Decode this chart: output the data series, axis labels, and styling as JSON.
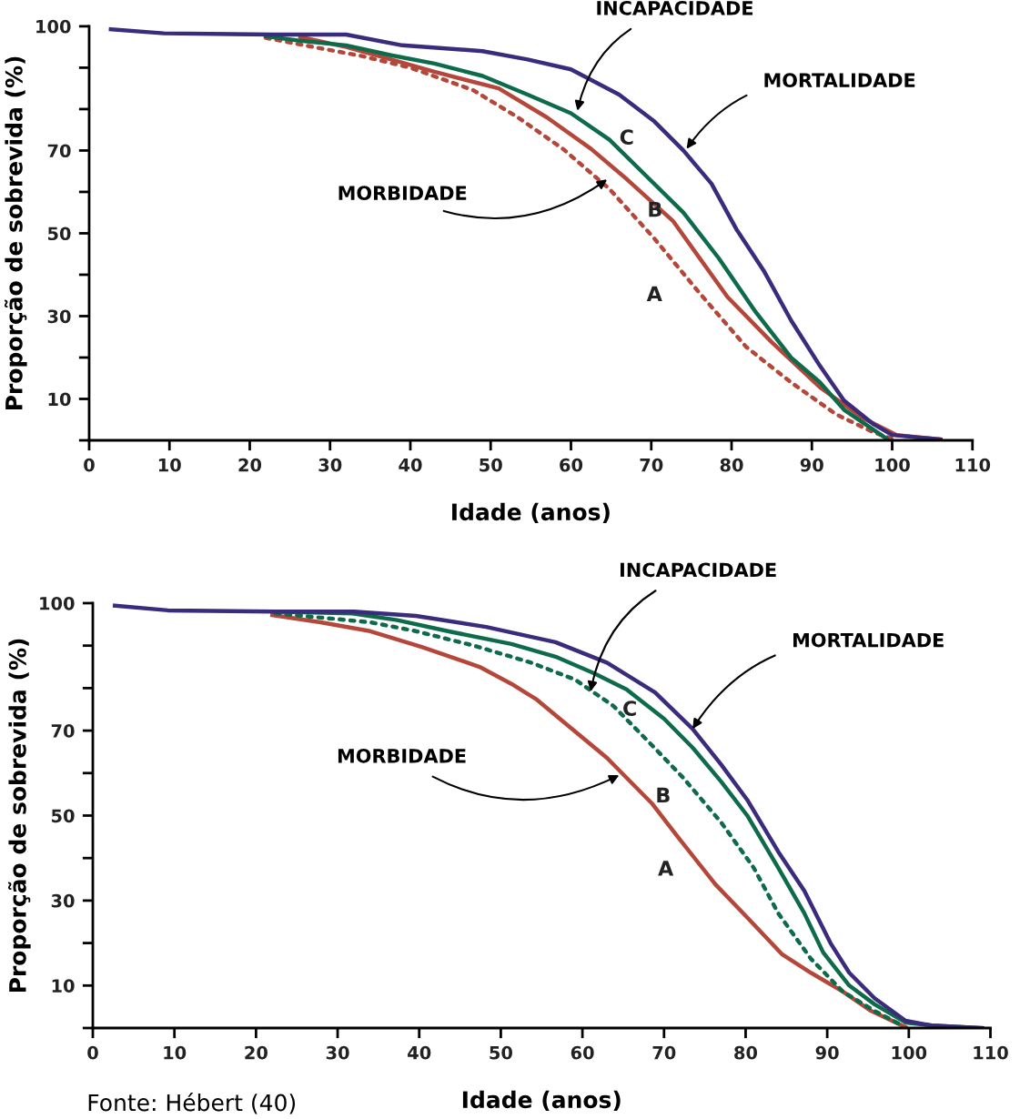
{
  "chart_data": [
    {
      "type": "line",
      "xlabel": "Idade (anos)",
      "ylabel": "Proporção de sobrevida (%)",
      "xlim": [
        0,
        110
      ],
      "xticks": [
        0,
        10,
        20,
        30,
        40,
        50,
        60,
        70,
        80,
        90,
        100,
        110
      ],
      "ylim": [
        0,
        100
      ],
      "yticks": [
        {
          "value": 0,
          "label": null
        },
        10,
        {
          "value": 20,
          "label": null
        },
        30,
        {
          "value": 40,
          "label": null
        },
        50,
        {
          "value": 60,
          "label": null
        },
        70,
        {
          "value": 80,
          "label": null
        },
        {
          "value": 90,
          "label": null
        },
        100
      ],
      "series": [
        {
          "color": "#b5473a",
          "line_style": "dotted",
          "x": [
            22,
            28.5,
            34,
            40,
            47.8,
            53.4,
            59,
            64.8,
            70.4,
            76,
            81.8,
            87.4,
            93,
            97.6,
            100.5
          ],
          "values": [
            97.2,
            94.8,
            92.8,
            90,
            84.6,
            78,
            70.4,
            60.7,
            48.7,
            35.6,
            22.6,
            14,
            6.3,
            2,
            0
          ]
        },
        {
          "color": "#b5473a",
          "line_style": "solid",
          "x": [
            26.3,
            32,
            37.6,
            43,
            51,
            57,
            62.5,
            67,
            72.7,
            79.5,
            85,
            91,
            96.5,
            100.5,
            106
          ],
          "values": [
            97.4,
            95,
            92,
            89,
            85,
            78,
            70.4,
            63,
            53,
            34.6,
            23.7,
            12.8,
            5.2,
            1.3,
            0.2
          ]
        },
        {
          "color": "#0e6b4a",
          "line_style": "solid",
          "x": [
            22,
            26.3,
            32,
            37.6,
            43,
            49,
            54.6,
            60,
            64.8,
            69.3,
            74,
            78.4,
            83,
            87.4,
            91,
            94,
            99.3
          ],
          "values": [
            97.6,
            96.5,
            95.4,
            93,
            91,
            88,
            83.5,
            79,
            72.6,
            64,
            55,
            44,
            31,
            20,
            14,
            7.4,
            0.4
          ]
        },
        {
          "color": "#3b2b7c",
          "line_style": "solid",
          "x": [
            2.7,
            9.3,
            23,
            32,
            39,
            49,
            54.6,
            60,
            66,
            70.4,
            74,
            77.5,
            80.6,
            84,
            87.4,
            91,
            94,
            97.6,
            100,
            106
          ],
          "values": [
            99.3,
            98.3,
            98,
            98,
            95.4,
            94,
            92,
            89.6,
            83.5,
            77,
            70,
            62,
            51,
            41,
            29,
            18,
            9.6,
            4,
            1.3,
            0.2
          ]
        }
      ],
      "annotations": [
        {
          "text": "INCAPACIDADE",
          "x": 60.8,
          "y": 79.6
        },
        {
          "text": "MORTALIDADE",
          "x": 74.4,
          "y": 70.4
        },
        {
          "text": "MORBIDADE",
          "x": 64.5,
          "y": 63
        },
        {
          "text": "C",
          "x": 66,
          "y": 83.5
        },
        {
          "text": "B",
          "x": 67,
          "y": 63
        },
        {
          "text": "A",
          "x": 70.4,
          "y": 48.7
        }
      ]
    },
    {
      "type": "line",
      "xlabel": "Idade (anos)",
      "ylabel": "Proporção de sobrevida (%)",
      "xlim": [
        0,
        110
      ],
      "xticks": [
        0,
        10,
        20,
        30,
        40,
        50,
        60,
        70,
        80,
        90,
        100,
        110
      ],
      "ylim": [
        0,
        100
      ],
      "yticks": [
        {
          "value": 0,
          "label": null
        },
        10,
        {
          "value": 20,
          "label": null
        },
        30,
        {
          "value": 40,
          "label": null
        },
        50,
        {
          "value": 60,
          "label": null
        },
        70,
        {
          "value": 80,
          "label": null
        },
        {
          "value": 90,
          "label": null
        },
        100
      ],
      "series": [
        {
          "color": "#b5473a",
          "line_style": "solid",
          "x": [
            22,
            27.9,
            34,
            40.3,
            47.4,
            51.3,
            54.4,
            59.1,
            63,
            68.5,
            71.6,
            76.3,
            80.2,
            84.5,
            88,
            91.9,
            95.4,
            99.6
          ],
          "values": [
            97.2,
            95.5,
            93.4,
            89.7,
            85,
            81,
            77.3,
            69.8,
            63.6,
            52.9,
            45.2,
            33.8,
            26,
            17.3,
            13,
            8.6,
            4,
            0.2
          ]
        },
        {
          "color": "#0e6b4a",
          "line_style": "dotted",
          "x": [
            22.4,
            27.9,
            34,
            39.6,
            46.7,
            53.7,
            59.1,
            63.8,
            68.5,
            72.3,
            77,
            81,
            84,
            88,
            91.9,
            95.8,
            98.9
          ],
          "values": [
            97.6,
            96.6,
            95.5,
            93.4,
            90,
            86,
            82,
            75.8,
            66.6,
            59,
            48.4,
            37.7,
            27,
            16.3,
            8.6,
            4,
            0.9
          ]
        },
        {
          "color": "#0e6b4a",
          "line_style": "solid",
          "x": [
            22.4,
            31.8,
            37.3,
            43.5,
            51.3,
            56.7,
            61.4,
            65.4,
            70,
            73.5,
            77,
            80.2,
            84,
            87.2,
            89.5,
            92.7,
            95.8,
            99.6,
            102.8,
            109
          ],
          "values": [
            98,
            97.6,
            96,
            93.4,
            90.4,
            87.4,
            83.5,
            79.7,
            72.8,
            66,
            58,
            50,
            37.7,
            27,
            17.8,
            10,
            5.6,
            1.3,
            0.6,
            0
          ]
        },
        {
          "color": "#3b2b7c",
          "line_style": "solid",
          "x": [
            2.7,
            9.2,
            22.4,
            32,
            39.6,
            48.2,
            56.7,
            63,
            68.9,
            73.5,
            77,
            80.2,
            84,
            87.2,
            90.4,
            92.7,
            95.8,
            99.6,
            102.8,
            109
          ],
          "values": [
            99.4,
            98.3,
            98,
            98,
            97,
            94.4,
            90.8,
            86,
            79,
            70.4,
            62,
            53.7,
            41.5,
            32.3,
            20,
            13,
            7,
            1.7,
            0.6,
            0
          ]
        }
      ],
      "annotations": [
        {
          "text": "INCAPACIDADE",
          "x": 61,
          "y": 79.2
        },
        {
          "text": "MORTALIDADE",
          "x": 73.5,
          "y": 70.4
        },
        {
          "text": "MORBIDADE",
          "x": 64.5,
          "y": 59.5
        },
        {
          "text": "C",
          "x": 68.9,
          "y": 79
        },
        {
          "text": "B",
          "x": 68.5,
          "y": 66.6
        },
        {
          "text": "A",
          "x": 71.6,
          "y": 45.2
        },
        "Fonte: Hébert (40)"
      ]
    }
  ]
}
